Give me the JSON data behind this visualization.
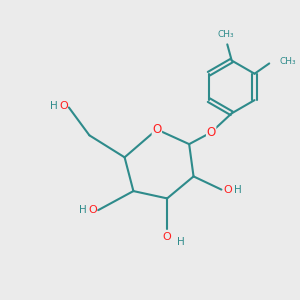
{
  "bg_color": "#ebebeb",
  "bond_color": "#2e8b8b",
  "oxygen_color": "#ff2222",
  "figsize": [
    3.0,
    3.0
  ],
  "dpi": 100,
  "xlim": [
    0,
    10
  ],
  "ylim": [
    0,
    10
  ]
}
